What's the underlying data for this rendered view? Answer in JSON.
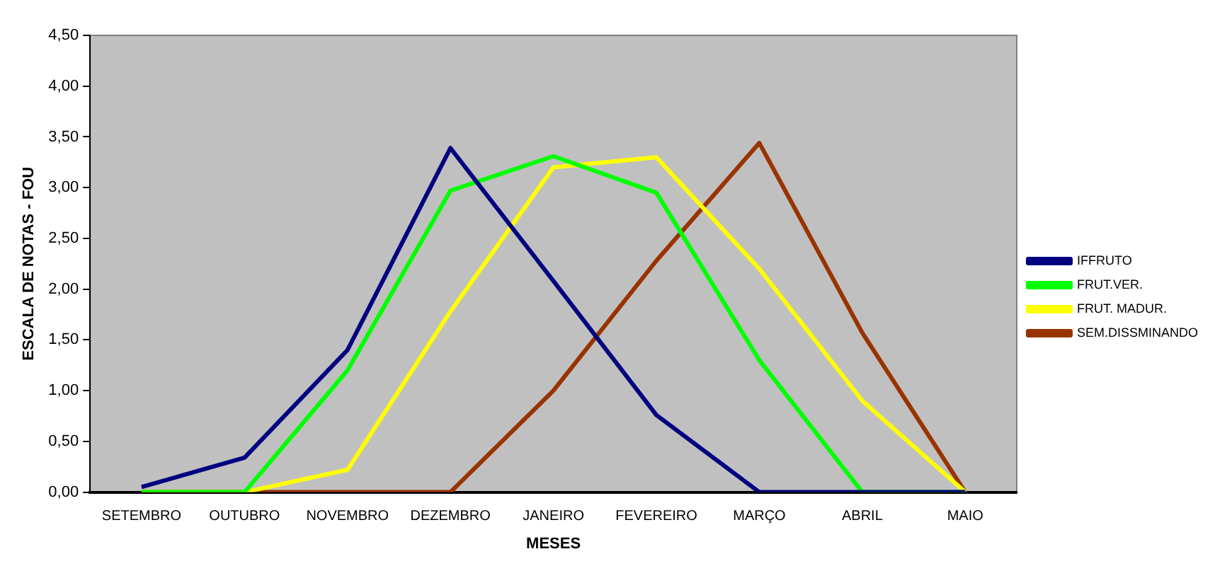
{
  "chart_data": {
    "type": "line",
    "xlabel": "MESES",
    "ylabel": "ESCALA DE NOTAS - FOU",
    "categories": [
      "SETEMBRO",
      "OUTUBRO",
      "NOVEMBRO",
      "DEZEMBRO",
      "JANEIRO",
      "FEVEREIRO",
      "MARÇO",
      "ABRIL",
      "MAIO"
    ],
    "series": [
      {
        "name": "IFFRUTO",
        "color": "#000080",
        "values": [
          0.05,
          0.34,
          1.4,
          3.39,
          2.08,
          0.76,
          0,
          0,
          0
        ]
      },
      {
        "name": "FRUT.VER.",
        "color": "#00ff00",
        "values": [
          0,
          0,
          1.2,
          2.97,
          3.31,
          2.95,
          1.3,
          0,
          0
        ]
      },
      {
        "name": "FRUT. MADUR.",
        "color": "#ffff00",
        "values": [
          0,
          0,
          0.22,
          1.78,
          3.2,
          3.3,
          2.2,
          0.9,
          0
        ]
      },
      {
        "name": "SEM.DISSMINANDO",
        "color": "#993300",
        "values": [
          0,
          0,
          0,
          0,
          1.0,
          2.28,
          3.44,
          1.57,
          0
        ]
      }
    ],
    "ylim": [
      0,
      4.5
    ],
    "yticks": [
      {
        "value": 0,
        "label": "0,00"
      },
      {
        "value": 0.5,
        "label": "0,50"
      },
      {
        "value": 1,
        "label": "1,00"
      },
      {
        "value": 1.5,
        "label": "1,50"
      },
      {
        "value": 2,
        "label": "2,00"
      },
      {
        "value": 2.5,
        "label": "2,50"
      },
      {
        "value": 3,
        "label": "3,00"
      },
      {
        "value": 3.5,
        "label": "3,50"
      },
      {
        "value": 4,
        "label": "4,00"
      },
      {
        "value": 4.5,
        "label": "4,50"
      }
    ],
    "grid": false,
    "legend": "right",
    "marker": "none",
    "line_style": "solid"
  }
}
